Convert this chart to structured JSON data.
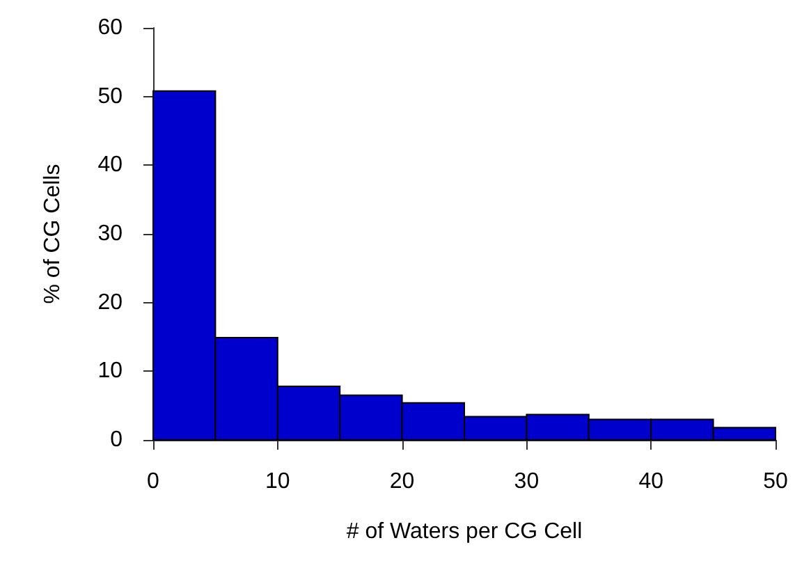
{
  "chart_data": {
    "type": "histogram",
    "xlabel": "# of Waters per CG Cell",
    "ylabel": "% of CG Cells",
    "bins": [
      0,
      5,
      10,
      15,
      20,
      25,
      30,
      35,
      40,
      45,
      50
    ],
    "values": [
      50.8,
      14.9,
      7.8,
      6.5,
      5.4,
      3.4,
      3.7,
      3.0,
      3.0,
      1.8
    ],
    "color": "#0000cd",
    "xlim": [
      0,
      50
    ],
    "xticks": [
      0,
      10,
      20,
      30,
      40,
      50
    ],
    "ylim": [
      0,
      60
    ],
    "yticks": [
      0,
      10,
      20,
      30,
      40,
      50,
      60
    ],
    "grid": false
  }
}
